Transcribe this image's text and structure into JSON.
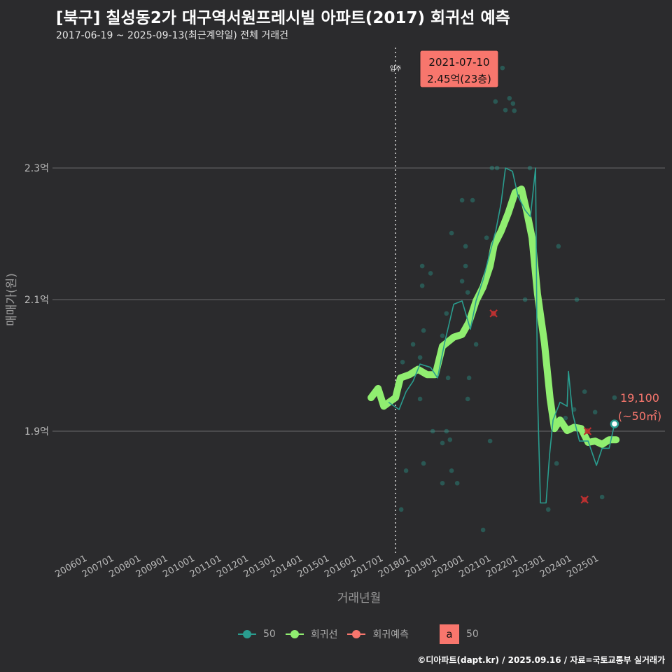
{
  "title": "[북구] 칠성동2가 대구역서원프레시빌 아파트(2017) 회귀선 예측",
  "subtitle": "2017-06-19 ~ 2025-09-13(최근계약일) 전체 거래건",
  "footer": "©디아파트(dapt.kr) / 2025.09.16 / 자료=국토교통부 실거래가",
  "colors": {
    "background": "#2b2b2d",
    "series_50": "#2a9d8f",
    "regression": "#90ee70",
    "prediction": "#f8766d",
    "annotation": "#f8766d"
  },
  "legend": {
    "items": [
      {
        "label": "50"
      },
      {
        "label": "회귀선"
      },
      {
        "label": "회귀예측"
      }
    ],
    "text_key_label": "a",
    "text_key_value": "50"
  },
  "chart_data": {
    "type": "line",
    "title": "[북구] 칠성동2가 대구역서원프레시빌 아파트(2017) 회귀선 예측",
    "xlabel": "거래년월",
    "ylabel": "매매가(원)",
    "ylim": [
      1.72,
      2.486
    ],
    "xlim": [
      2005.5,
      2026.5
    ],
    "y_ticks": [
      {
        "value": 1.9,
        "label": "1.9억"
      },
      {
        "value": 2.1,
        "label": "2.1억"
      },
      {
        "value": 2.3,
        "label": "2.3억"
      }
    ],
    "x_ticks": [
      "200601",
      "200701",
      "200801",
      "200901",
      "201001",
      "201101",
      "201201",
      "201301",
      "201401",
      "201501",
      "201601",
      "201701",
      "201801",
      "201901",
      "202001",
      "202101",
      "202201",
      "202301",
      "202401",
      "202501"
    ],
    "move_in": {
      "year": 2017.44,
      "label": "입주"
    },
    "annotation": {
      "date": "2021-07-10",
      "price": "2.45억(23층)",
      "point": [
        2021.41,
        2.452
      ]
    },
    "end_label": {
      "value": "19,100",
      "area": "(~50㎡)",
      "point": [
        2025.57,
        1.911
      ]
    },
    "series": [
      {
        "name": "회귀선",
        "points": [
          [
            2016.53,
            1.951
          ],
          [
            2016.79,
            1.965
          ],
          [
            2017.0,
            1.938
          ],
          [
            2017.2,
            1.944
          ],
          [
            2017.44,
            1.951
          ],
          [
            2017.62,
            1.981
          ],
          [
            2017.96,
            1.986
          ],
          [
            2018.27,
            1.994
          ],
          [
            2018.61,
            1.986
          ],
          [
            2018.92,
            1.986
          ],
          [
            2019.18,
            2.029
          ],
          [
            2019.6,
            2.043
          ],
          [
            2019.91,
            2.047
          ],
          [
            2020.17,
            2.066
          ],
          [
            2020.43,
            2.098
          ],
          [
            2020.69,
            2.119
          ],
          [
            2020.95,
            2.151
          ],
          [
            2021.1,
            2.183
          ],
          [
            2021.36,
            2.204
          ],
          [
            2021.62,
            2.231
          ],
          [
            2021.88,
            2.263
          ],
          [
            2022.12,
            2.268
          ],
          [
            2022.3,
            2.236
          ],
          [
            2022.51,
            2.194
          ],
          [
            2022.71,
            2.109
          ],
          [
            2022.97,
            2.034
          ],
          [
            2023.18,
            1.949
          ],
          [
            2023.34,
            1.904
          ],
          [
            2023.55,
            1.917
          ],
          [
            2023.81,
            1.901
          ],
          [
            2024.07,
            1.906
          ],
          [
            2024.33,
            1.904
          ],
          [
            2024.59,
            1.883
          ],
          [
            2024.85,
            1.885
          ],
          [
            2025.11,
            1.88
          ],
          [
            2025.37,
            1.887
          ],
          [
            2025.63,
            1.887
          ]
        ]
      },
      {
        "name": "50",
        "points": [
          [
            2017.18,
            1.944
          ],
          [
            2017.57,
            1.933
          ],
          [
            2017.83,
            1.96
          ],
          [
            2018.09,
            1.976
          ],
          [
            2018.35,
            2.002
          ],
          [
            2018.74,
            1.997
          ],
          [
            2019.0,
            1.981
          ],
          [
            2019.26,
            2.034
          ],
          [
            2019.6,
            2.093
          ],
          [
            2019.91,
            2.098
          ],
          [
            2020.22,
            2.055
          ],
          [
            2020.43,
            2.098
          ],
          [
            2020.69,
            2.13
          ],
          [
            2020.95,
            2.172
          ],
          [
            2021.16,
            2.204
          ],
          [
            2021.36,
            2.247
          ],
          [
            2021.52,
            2.3
          ],
          [
            2021.78,
            2.295
          ],
          [
            2021.99,
            2.257
          ],
          [
            2022.25,
            2.236
          ],
          [
            2022.45,
            2.226
          ],
          [
            2022.64,
            2.3
          ],
          [
            2022.71,
            1.96
          ],
          [
            2022.82,
            1.791
          ],
          [
            2023.03,
            1.791
          ],
          [
            2023.16,
            1.864
          ],
          [
            2023.29,
            1.917
          ],
          [
            2023.55,
            1.944
          ],
          [
            2023.81,
            1.938
          ],
          [
            2023.86,
            1.991
          ],
          [
            2024.01,
            1.928
          ],
          [
            2024.27,
            1.885
          ],
          [
            2024.59,
            1.885
          ],
          [
            2024.9,
            1.848
          ],
          [
            2025.11,
            1.874
          ],
          [
            2025.37,
            1.874
          ],
          [
            2025.57,
            1.911
          ]
        ]
      }
    ],
    "scatter": [
      [
        2021.41,
        2.452
      ],
      [
        2021.15,
        2.401
      ],
      [
        2021.67,
        2.406
      ],
      [
        2021.8,
        2.398
      ],
      [
        2021.85,
        2.387
      ],
      [
        2021.52,
        2.388
      ],
      [
        2021.02,
        2.3
      ],
      [
        2021.21,
        2.3
      ],
      [
        2022.43,
        2.3
      ],
      [
        2019.91,
        2.251
      ],
      [
        2020.3,
        2.251
      ],
      [
        2019.52,
        2.201
      ],
      [
        2020.82,
        2.194
      ],
      [
        2023.49,
        2.181
      ],
      [
        2020.04,
        2.181
      ],
      [
        2020.04,
        2.151
      ],
      [
        2018.43,
        2.151
      ],
      [
        2018.74,
        2.14
      ],
      [
        2019.91,
        2.128
      ],
      [
        2018.43,
        2.121
      ],
      [
        2020.12,
        2.111
      ],
      [
        2024.17,
        2.1
      ],
      [
        2022.25,
        2.1
      ],
      [
        2019.33,
        2.079
      ],
      [
        2021.08,
        2.079
      ],
      [
        2018.48,
        2.053
      ],
      [
        2019.18,
        2.045
      ],
      [
        2018.09,
        2.032
      ],
      [
        2020.43,
        2.032
      ],
      [
        2017.7,
        2.005
      ],
      [
        2018.35,
        2.012
      ],
      [
        2019.39,
        1.981
      ],
      [
        2020.17,
        1.981
      ],
      [
        2018.35,
        1.949
      ],
      [
        2020.12,
        1.949
      ],
      [
        2024.46,
        1.96
      ],
      [
        2023.75,
        1.92
      ],
      [
        2024.07,
        1.933
      ],
      [
        2024.85,
        1.929
      ],
      [
        2018.82,
        1.9
      ],
      [
        2019.33,
        1.9
      ],
      [
        2019.46,
        1.887
      ],
      [
        2019.18,
        1.882
      ],
      [
        2020.95,
        1.885
      ],
      [
        2018.48,
        1.851
      ],
      [
        2019.52,
        1.84
      ],
      [
        2019.18,
        1.821
      ],
      [
        2019.73,
        1.821
      ],
      [
        2017.83,
        1.84
      ],
      [
        2017.65,
        1.781
      ],
      [
        2023.11,
        1.781
      ],
      [
        2023.42,
        1.851
      ],
      [
        2025.11,
        1.8
      ],
      [
        2020.69,
        1.75
      ],
      [
        2025.57,
        1.951
      ]
    ],
    "predictions": [
      [
        2021.08,
        2.079
      ],
      [
        2024.46,
        1.796
      ],
      [
        2024.57,
        1.9
      ]
    ]
  }
}
